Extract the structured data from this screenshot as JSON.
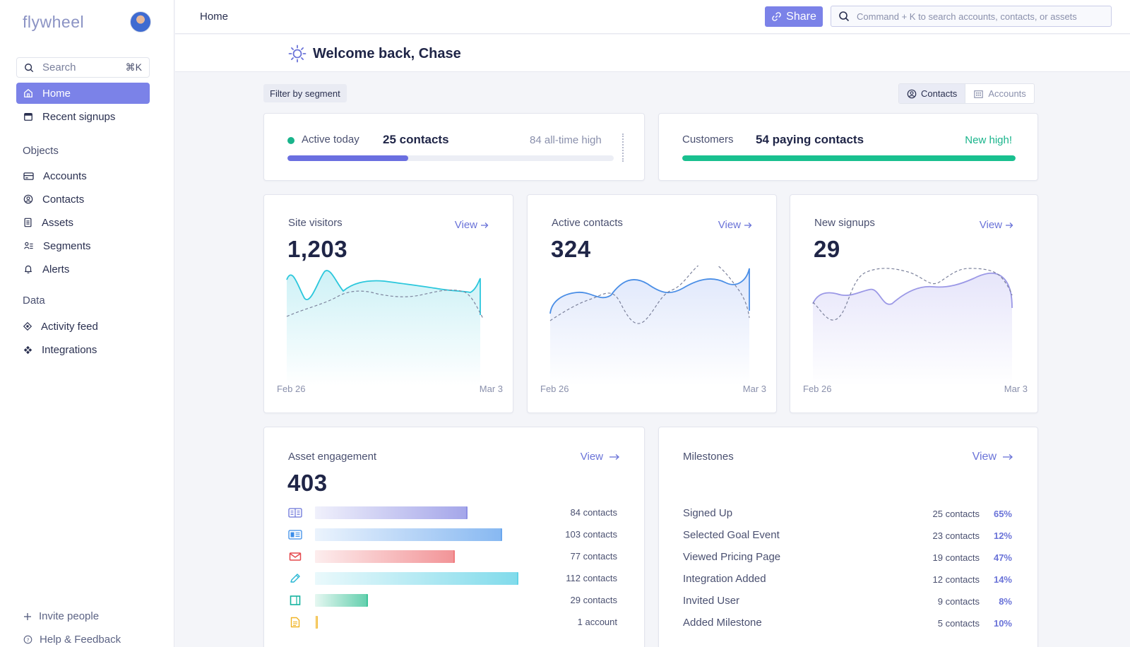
{
  "app": {
    "logo": "flywheel"
  },
  "sidebar": {
    "search_label": "Search",
    "search_shortcut": "⌘K",
    "nav": [
      {
        "label": "Home",
        "icon": "home-icon",
        "active": true
      },
      {
        "label": "Recent signups",
        "icon": "calendar-icon"
      }
    ],
    "objects_heading": "Objects",
    "objects": [
      {
        "label": "Accounts",
        "icon": "card-icon"
      },
      {
        "label": "Contacts",
        "icon": "user-circle-icon"
      },
      {
        "label": "Assets",
        "icon": "document-icon"
      },
      {
        "label": "Segments",
        "icon": "segments-icon"
      },
      {
        "label": "Alerts",
        "icon": "bell-icon"
      }
    ],
    "data_heading": "Data",
    "data": [
      {
        "label": "Activity feed",
        "icon": "activity-icon"
      },
      {
        "label": "Integrations",
        "icon": "integrations-icon"
      }
    ],
    "footer": [
      {
        "label": "Invite people",
        "icon": "plus-icon"
      },
      {
        "label": "Help & Feedback",
        "icon": "help-icon"
      }
    ]
  },
  "topbar": {
    "breadcrumb": "Home",
    "share_label": "Share",
    "search_placeholder": "Command + K to search accounts, contacts, or assets"
  },
  "welcome": {
    "title": "Welcome back, Chase"
  },
  "filter": {
    "segment_label": "Filter by segment",
    "toggle": [
      {
        "label": "Contacts",
        "selected": true
      },
      {
        "label": "Accounts",
        "selected": false
      }
    ]
  },
  "active_today": {
    "label": "Active today",
    "value": "25 contacts",
    "high_label": "84 all-time high",
    "progress": 0.37
  },
  "customers": {
    "label": "Customers",
    "value": "54 paying contacts",
    "badge": "New high!",
    "progress": 1.0
  },
  "stats": [
    {
      "title": "Site visitors",
      "value": "1,203",
      "view": "View",
      "start": "Feb 26",
      "end": "Mar 3"
    },
    {
      "title": "Active contacts",
      "value": "324",
      "view": "View",
      "start": "Feb 26",
      "end": "Mar 3"
    },
    {
      "title": "New signups",
      "value": "29",
      "view": "View",
      "start": "Feb 26",
      "end": "Mar 3"
    }
  ],
  "asset_engagement": {
    "title": "Asset engagement",
    "value": "403",
    "view": "View",
    "rows": [
      {
        "icon": "book-icon",
        "count_label": "84 contacts",
        "value": 84
      },
      {
        "icon": "newsletter-icon",
        "count_label": "103 contacts",
        "value": 103
      },
      {
        "icon": "mail-icon",
        "count_label": "77 contacts",
        "value": 77
      },
      {
        "icon": "pencil-icon",
        "count_label": "112 contacts",
        "value": 112
      },
      {
        "icon": "square-icon",
        "count_label": "29 contacts",
        "value": 29
      },
      {
        "icon": "file-icon",
        "count_label": "1 account",
        "value": 1
      }
    ],
    "colors": [
      "#8e90e4",
      "#6aa7ee",
      "#ef7a7e",
      "#62d2e6",
      "#3fc49a",
      "#f3c14b"
    ]
  },
  "milestones": {
    "title": "Milestones",
    "view": "View",
    "rows": [
      {
        "name": "Signed Up",
        "count": "25 contacts",
        "pct": "65%"
      },
      {
        "name": "Selected Goal Event",
        "count": "23 contacts",
        "pct": "12%"
      },
      {
        "name": "Viewed Pricing Page",
        "count": "19 contacts",
        "pct": "47%"
      },
      {
        "name": "Integration Added",
        "count": "12 contacts",
        "pct": "14%"
      },
      {
        "name": "Invited User",
        "count": "9 contacts",
        "pct": "8%"
      },
      {
        "name": "Added Milestone",
        "count": "5 contacts",
        "pct": "10%"
      }
    ]
  },
  "colors": {
    "accent": "#7b82e8",
    "green": "#19b48b"
  }
}
